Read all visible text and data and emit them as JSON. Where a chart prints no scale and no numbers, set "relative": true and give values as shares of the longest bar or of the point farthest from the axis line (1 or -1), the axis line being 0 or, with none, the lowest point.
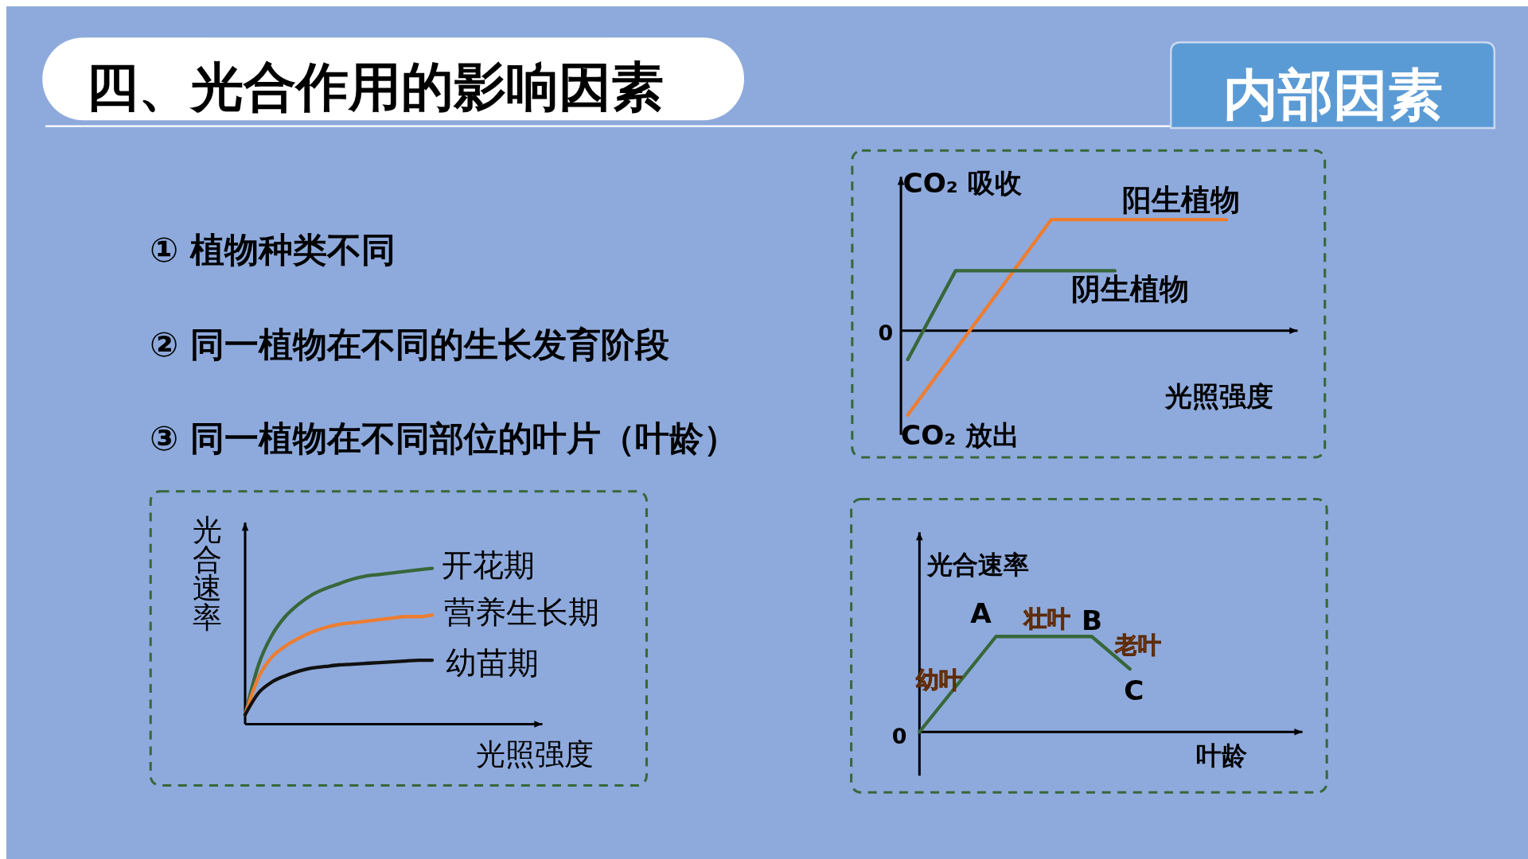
{
  "chart_data": [
    {
      "type": "other",
      "title": "四、光合作用的影响因素",
      "subtitle": "内部因素",
      "annotations": [
        "① 植物种类不同",
        "② 同一植物在不同的生长发育阶段",
        "③ 同一植物在不同部位的叶片（叶龄）"
      ]
    },
    {
      "type": "line",
      "relative": true,
      "ylabel": "CO₂ 吸收",
      "xlabel": "光照强度",
      "annotations": [
        "CO₂ 放出",
        "0"
      ],
      "categories": [
        null,
        null,
        null,
        null,
        null,
        null,
        null,
        null,
        null,
        null,
        null,
        null,
        null,
        null,
        null,
        null,
        null,
        null,
        null,
        null,
        null
      ],
      "series": [
        {
          "name": "阳生植物",
          "color": "#ed7d31",
          "values": [
            -0.76,
            null,
            null,
            null,
            null,
            null,
            null,
            null,
            null,
            1,
            null,
            null,
            null,
            null,
            null,
            null,
            null,
            null,
            null,
            null,
            1
          ]
        },
        {
          "name": "阴生植物",
          "color": "#38673a",
          "values": [
            -0.26,
            null,
            null,
            0.54,
            null,
            null,
            null,
            null,
            null,
            null,
            null,
            null,
            null,
            0.54,
            null,
            null,
            null,
            null,
            null,
            null,
            null
          ]
        }
      ]
    },
    {
      "type": "line",
      "relative": true,
      "ylabel": "光合速率",
      "xlabel": "光照强度",
      "categories": [
        null,
        null,
        null,
        null,
        null,
        null,
        null,
        null,
        null,
        null,
        null,
        null,
        null,
        null,
        null
      ],
      "series": [
        {
          "name": "开花期",
          "color": "#38673a",
          "values": [
            0.06,
            0.38,
            0.57,
            0.69,
            0.77,
            0.83,
            0.87,
            0.9,
            0.93,
            0.95,
            0.96,
            0.97,
            0.98,
            0.99,
            1
          ]
        },
        {
          "name": "营养生长期",
          "color": "#ed7d31",
          "values": [
            0.06,
            0.3,
            0.43,
            0.5,
            0.55,
            0.59,
            0.62,
            0.64,
            0.65,
            0.66,
            0.67,
            0.68,
            0.69,
            0.69,
            0.7
          ]
        },
        {
          "name": "幼苗期",
          "color": "#111111",
          "values": [
            0.06,
            0.2,
            0.27,
            0.31,
            0.34,
            0.36,
            0.37,
            0.38,
            0.385,
            0.39,
            0.395,
            0.4,
            0.405,
            0.41,
            0.41
          ]
        }
      ]
    },
    {
      "type": "line",
      "relative": true,
      "ylabel": "光合速率",
      "xlabel": "叶龄",
      "annotations": [
        "0",
        "A",
        "B",
        "C",
        "幼叶",
        "壮叶",
        "老叶"
      ],
      "categories": [
        null,
        null,
        null,
        null,
        null,
        null,
        null,
        null,
        null,
        null,
        null,
        null
      ],
      "series": [
        {
          "color": "#38673a",
          "values": [
            0,
            null,
            null,
            null,
            1,
            null,
            null,
            null,
            null,
            1,
            null,
            0.66
          ]
        }
      ]
    }
  ]
}
